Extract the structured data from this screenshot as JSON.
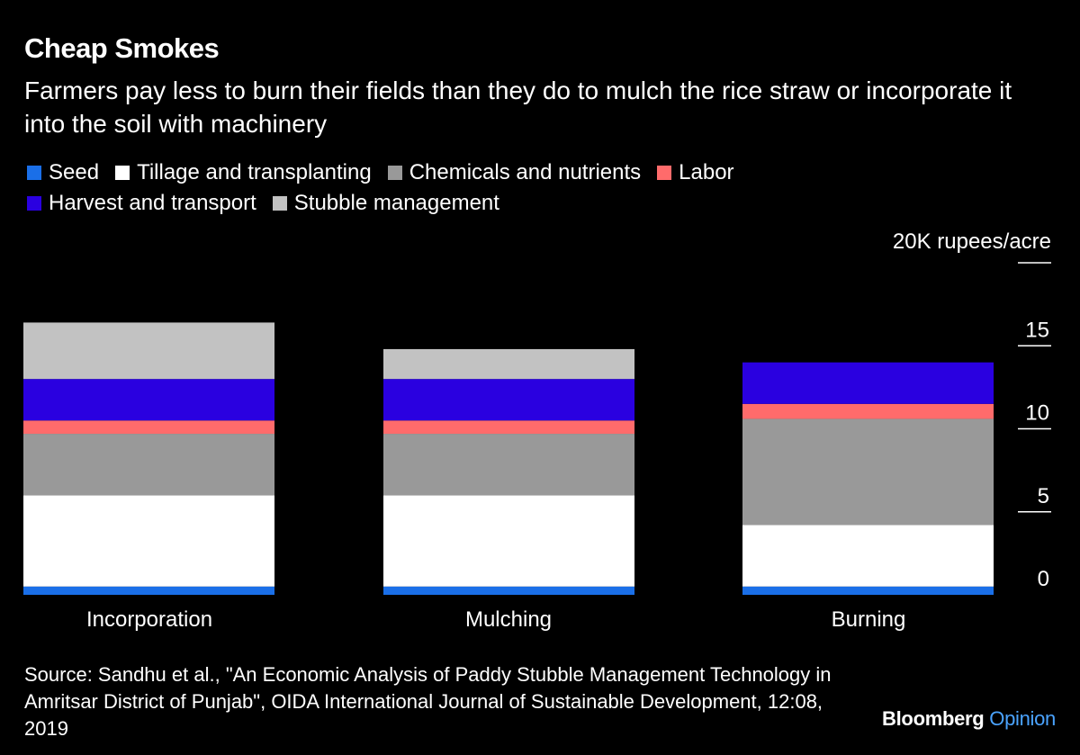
{
  "title": "Cheap Smokes",
  "subtitle": "Farmers pay less to burn their fields than they do to mulch the rice straw or incorporate it into the soil with machinery",
  "unit_label": "20K rupees/acre",
  "source": "Source: Sandhu et al., \"An Economic Analysis of Paddy Stubble Management Technology in Amritsar District of Punjab\", OIDA International Journal of Sustainable Development, 12:08, 2019",
  "brand": {
    "primary": "Bloomberg",
    "secondary": "Opinion"
  },
  "chart_data": {
    "type": "bar",
    "stacked": true,
    "categories": [
      "Incorporation",
      "Mulching",
      "Burning"
    ],
    "series": [
      {
        "name": "Seed",
        "color": "#1a6fe8",
        "values": [
          0.5,
          0.5,
          0.5
        ]
      },
      {
        "name": "Tillage and transplanting",
        "color": "#ffffff",
        "values": [
          5.5,
          5.5,
          3.7
        ]
      },
      {
        "name": "Chemicals and nutrients",
        "color": "#999999",
        "values": [
          3.7,
          3.7,
          6.4
        ]
      },
      {
        "name": "Labor",
        "color": "#ff6b6b",
        "values": [
          0.8,
          0.8,
          0.9
        ]
      },
      {
        "name": "Harvest and transport",
        "color": "#2a00e0",
        "values": [
          2.5,
          2.5,
          2.5
        ]
      },
      {
        "name": "Stubble management",
        "color": "#c2c2c2",
        "values": [
          3.4,
          1.8,
          0
        ]
      }
    ],
    "ylim": [
      0,
      20
    ],
    "yticks": [
      0,
      5,
      10,
      15,
      20
    ],
    "ytick_labels": [
      "0",
      "5",
      "10",
      "15",
      "20K"
    ],
    "ylabel": "rupees/acre",
    "legend_position": "top"
  }
}
